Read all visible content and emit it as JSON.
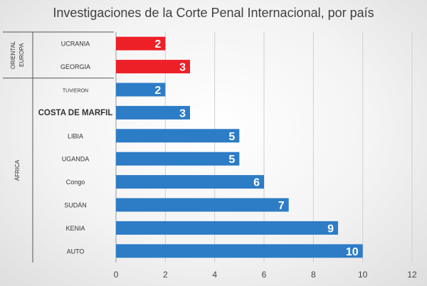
{
  "chart_data": {
    "type": "bar",
    "orientation": "horizontal",
    "title": "Investigaciones de la Corte Penal Internacional, por país",
    "categories": [
      "UCRANIA",
      "GEORGIA",
      "TUVIERON",
      "COSTA DE MARFIL",
      "LIBIA",
      "UGANDA",
      "Congo",
      "SUDÁN",
      "KENIA",
      "AUTO"
    ],
    "values": [
      2,
      3,
      2,
      3,
      5,
      5,
      6,
      7,
      9,
      10
    ],
    "bar_colors": [
      "#ee2027",
      "#ee2027",
      "#2d7cc6",
      "#2d7cc6",
      "#2d7cc6",
      "#2d7cc6",
      "#2d7cc6",
      "#2d7cc6",
      "#2d7cc6",
      "#2d7cc6"
    ],
    "groups": [
      {
        "label_lines": [
          "ORIENTAL",
          "EUROPA"
        ],
        "start": 0,
        "end": 1
      },
      {
        "label_lines": [
          "ÁFRICA"
        ],
        "start": 2,
        "end": 9
      }
    ],
    "xlim": [
      0,
      12
    ],
    "xticks": [
      0,
      2,
      4,
      6,
      8,
      10,
      12
    ],
    "grid": true,
    "legend": "none"
  }
}
